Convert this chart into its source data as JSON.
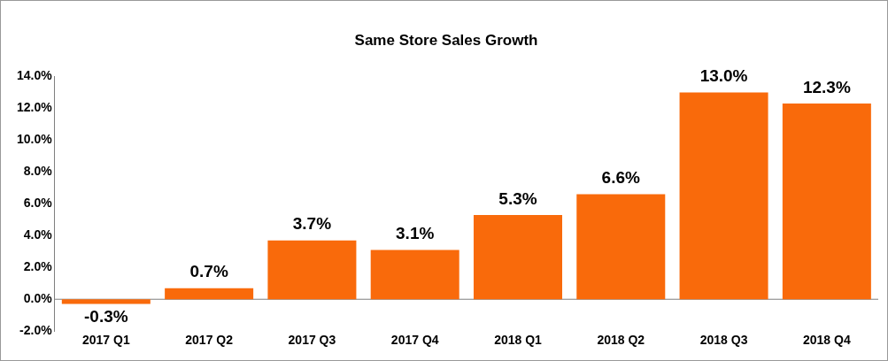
{
  "chart_data": {
    "type": "bar",
    "title": "Same Store Sales Growth",
    "categories": [
      "2017 Q1",
      "2017 Q2",
      "2017 Q3",
      "2017 Q4",
      "2018 Q1",
      "2018 Q2",
      "2018 Q3",
      "2018 Q4"
    ],
    "values": [
      -0.3,
      0.7,
      3.7,
      3.1,
      5.3,
      6.6,
      13.0,
      12.3
    ],
    "value_labels": [
      "-0.3%",
      "0.7%",
      "3.7%",
      "3.1%",
      "5.3%",
      "6.6%",
      "13.0%",
      "12.3%"
    ],
    "color": "#f96a0b",
    "ylim": [
      -2,
      14
    ],
    "yticks": [
      {
        "value": -2,
        "label": "-2.0%"
      },
      {
        "value": 0,
        "label": "0.0%"
      },
      {
        "value": 2,
        "label": "2.0%"
      },
      {
        "value": 4,
        "label": "4.0%"
      },
      {
        "value": 6,
        "label": "6.0%"
      },
      {
        "value": 8,
        "label": "8.0%"
      },
      {
        "value": 10,
        "label": "10.0%"
      },
      {
        "value": 12,
        "label": "12.0%"
      },
      {
        "value": 14,
        "label": "14.0%"
      }
    ],
    "ref_lines": [
      {
        "axis": "y",
        "value": 0,
        "color": "#7f7f7f"
      }
    ],
    "grid": false,
    "legend": false
  }
}
